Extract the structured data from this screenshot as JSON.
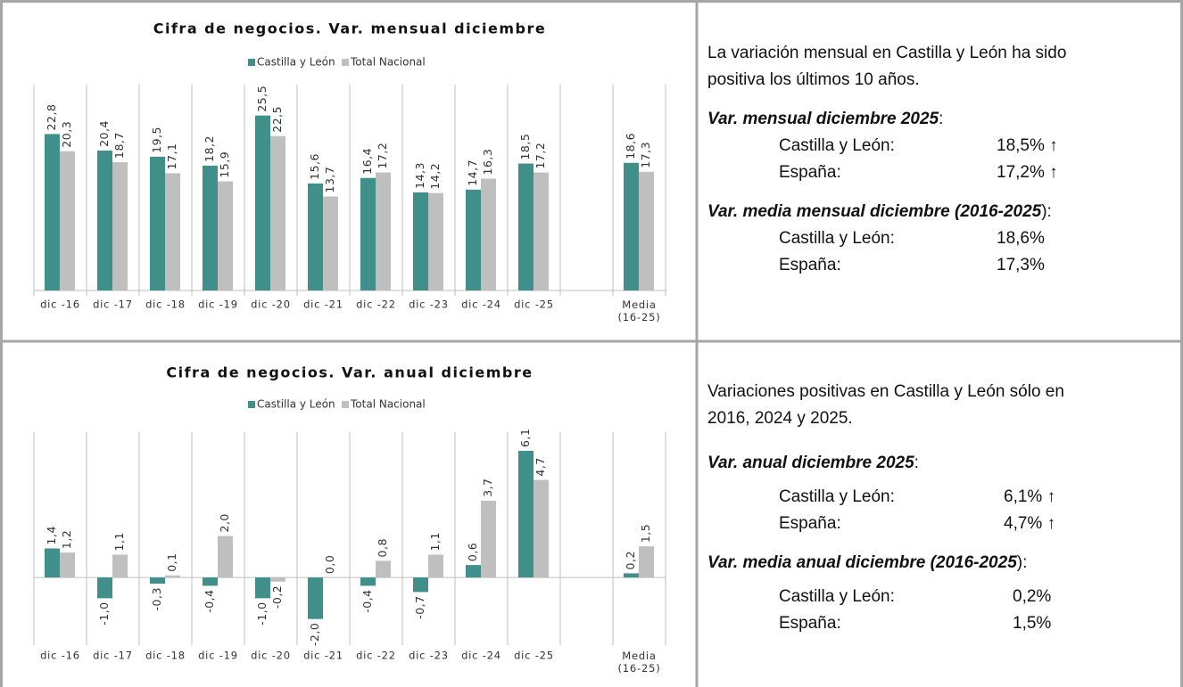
{
  "chart_data": [
    {
      "type": "bar",
      "title": "Cifra de negocios. Var. mensual diciembre",
      "categories": [
        "dic -16",
        "dic -17",
        "dic -18",
        "dic -19",
        "dic -20",
        "dic -21",
        "dic -22",
        "dic -23",
        "dic -24",
        "dic -25",
        null,
        "Media (16-25)"
      ],
      "series": [
        {
          "name": "Castilla y León",
          "color": "#3f8f8a",
          "values": [
            22.8,
            20.4,
            19.5,
            18.2,
            25.5,
            15.6,
            16.4,
            14.3,
            14.7,
            18.5,
            null,
            18.6
          ],
          "value_labels": [
            "22,8",
            "20,4",
            "19,5",
            "18,2",
            "25,5",
            "15,6",
            "16,4",
            "14,3",
            "14,7",
            "18,5",
            null,
            "18,6"
          ]
        },
        {
          "name": "Total Nacional",
          "color": "#bfbfbf",
          "values": [
            20.3,
            18.7,
            17.1,
            15.9,
            22.5,
            13.7,
            17.2,
            14.2,
            16.3,
            17.2,
            null,
            17.3
          ],
          "value_labels": [
            "20,3",
            "18,7",
            "17,1",
            "15,9",
            "22,5",
            "13,7",
            "17,2",
            "14,2",
            "16,3",
            "17,2",
            null,
            "17,3"
          ]
        }
      ],
      "ylim": [
        0,
        30
      ]
    },
    {
      "type": "bar",
      "title": "Cifra de negocios. Var. anual diciembre",
      "categories": [
        "dic -16",
        "dic -17",
        "dic -18",
        "dic -19",
        "dic -20",
        "dic -21",
        "dic -22",
        "dic -23",
        "dic -24",
        "dic -25",
        null,
        "Media (16-25)"
      ],
      "series": [
        {
          "name": "Castilla y León",
          "color": "#3f8f8a",
          "values": [
            1.4,
            -1.0,
            -0.3,
            -0.4,
            -1.0,
            -2.0,
            -0.4,
            -0.7,
            0.6,
            6.1,
            null,
            0.2
          ],
          "value_labels": [
            "1,4",
            "-1,0",
            "-0,3",
            "-0,4",
            "-1,0",
            "-2,0",
            "-0,4",
            "-0,7",
            "0,6",
            "6,1",
            null,
            "0,2"
          ]
        },
        {
          "name": "Total Nacional",
          "color": "#bfbfbf",
          "values": [
            1.2,
            1.1,
            0.1,
            2.0,
            -0.2,
            0.0,
            0.8,
            1.1,
            3.7,
            4.7,
            null,
            1.5
          ],
          "value_labels": [
            "1,2",
            "1,1",
            "0,1",
            "2,0",
            "-0,2",
            "0,0",
            "0,8",
            "1,1",
            "3,7",
            "4,7",
            null,
            "1,5"
          ]
        }
      ],
      "ylim": [
        -3,
        7
      ]
    }
  ],
  "panels": [
    {
      "intro": [
        "La variación mensual en Castilla y León ha sido",
        "positiva los últimos 10 años."
      ],
      "sections": [
        {
          "heading": "Var. mensual diciembre 2025",
          "suffix": ":",
          "rows": [
            {
              "label": "Castilla y León:",
              "value": "18,5% ↑"
            },
            {
              "label": "España:",
              "value": "17,2% ↑"
            }
          ]
        },
        {
          "heading": "Var. media mensual diciembre (2016-2025",
          "suffix": "):",
          "rows": [
            {
              "label": "Castilla y León:",
              "value": "18,6%"
            },
            {
              "label": "España:",
              "value": "17,3%"
            }
          ]
        }
      ]
    },
    {
      "intro": [
        "Variaciones positivas en Castilla y León sólo en",
        "2016, 2024 y 2025."
      ],
      "sections": [
        {
          "heading": "Var. anual diciembre 2025",
          "suffix": ":",
          "rows": [
            {
              "label": "Castilla y León:",
              "value": "6,1% ↑"
            },
            {
              "label": "España:",
              "value": "4,7% ↑"
            }
          ]
        },
        {
          "heading": "Var. media anual diciembre (2016-2025",
          "suffix": "):",
          "rows": [
            {
              "label": "Castilla y León:",
              "value": "0,2%"
            },
            {
              "label": "España:",
              "value": "1,5%"
            }
          ]
        }
      ]
    }
  ]
}
